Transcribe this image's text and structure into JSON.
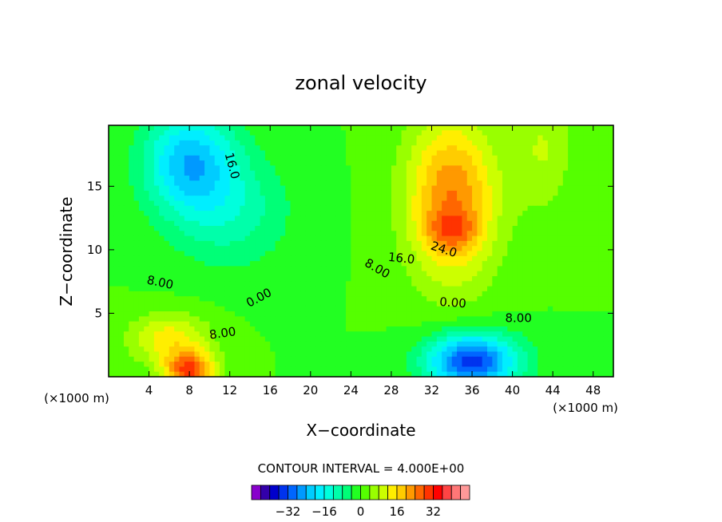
{
  "chart_data": {
    "type": "heatmap",
    "title": "zonal velocity",
    "xlabel": "X−coordinate",
    "ylabel": "Z−coordinate",
    "x_unit": "(×1000 m)",
    "y_unit": "(×1000 m)",
    "xlim": [
      0,
      50
    ],
    "ylim": [
      0,
      19.8
    ],
    "x_ticks": [
      4,
      8,
      12,
      16,
      20,
      24,
      28,
      32,
      36,
      40,
      44,
      48
    ],
    "x_tick_labels": [
      "4",
      "8",
      "12",
      "16",
      "20",
      "24",
      "28",
      "32",
      "36",
      "40",
      "44",
      "48"
    ],
    "y_ticks": [
      5,
      10,
      15
    ],
    "y_tick_labels": [
      "5",
      "10",
      "15"
    ],
    "contour_interval_text": "CONTOUR INTERVAL = 4.000E+00",
    "contour_labels": [
      {
        "text": "16.0",
        "x": 12.2,
        "y": 16.6,
        "rotate": 75
      },
      {
        "text": "8.00",
        "x": 5.1,
        "y": 7.4,
        "rotate": 12
      },
      {
        "text": "0.00",
        "x": 14.9,
        "y": 6.2,
        "rotate": -28
      },
      {
        "text": "8.00",
        "x": 11.3,
        "y": 3.4,
        "rotate": -8
      },
      {
        "text": "24.0",
        "x": 33.2,
        "y": 10.0,
        "rotate": 18
      },
      {
        "text": "16.0",
        "x": 29.0,
        "y": 9.3,
        "rotate": 6
      },
      {
        "text": "8.00",
        "x": 26.6,
        "y": 8.5,
        "rotate": 30
      },
      {
        "text": "0.00",
        "x": 34.1,
        "y": 5.8,
        "rotate": 4
      },
      {
        "text": "8.00",
        "x": 40.6,
        "y": 4.6,
        "rotate": 0
      }
    ],
    "colorbar": {
      "colors": [
        "#8800cc",
        "#3300aa",
        "#0000cc",
        "#0033ee",
        "#0066ff",
        "#0099ff",
        "#00ccff",
        "#00eeff",
        "#00ffdd",
        "#00ffaa",
        "#00ff77",
        "#22ff22",
        "#55ff00",
        "#99ff00",
        "#ccff00",
        "#ffee00",
        "#ffcc00",
        "#ff9900",
        "#ff6600",
        "#ff3300",
        "#ff0000",
        "#ff4444",
        "#ff7777",
        "#ff9999"
      ],
      "tick_values": [
        -32,
        -16,
        0,
        16,
        32
      ],
      "tick_labels": [
        "−32",
        "−16",
        "0",
        "16",
        "32"
      ],
      "vmin": -48,
      "vmax": 48
    },
    "features": [
      {
        "x": 8,
        "z": 17,
        "sx": 4.5,
        "sz": 4.0,
        "amp": -22
      },
      {
        "x": 12,
        "z": 13,
        "sx": 6,
        "sz": 4.5,
        "amp": -10
      },
      {
        "x": 34,
        "z": 14,
        "sx": 4.5,
        "sz": 6.5,
        "amp": 24
      },
      {
        "x": 34,
        "z": 11.5,
        "sx": 2.5,
        "sz": 1.5,
        "amp": 10
      },
      {
        "x": 36,
        "z": 1.2,
        "sx": 4.5,
        "sz": 2.2,
        "amp": -34
      },
      {
        "x": 8,
        "z": 0.5,
        "sx": 2.5,
        "sz": 1.5,
        "amp": 28
      },
      {
        "x": 6,
        "z": 3,
        "sx": 4,
        "sz": 2,
        "amp": 14
      },
      {
        "x": 43,
        "z": 18,
        "sx": 3,
        "sz": 5,
        "amp": 8
      }
    ]
  }
}
